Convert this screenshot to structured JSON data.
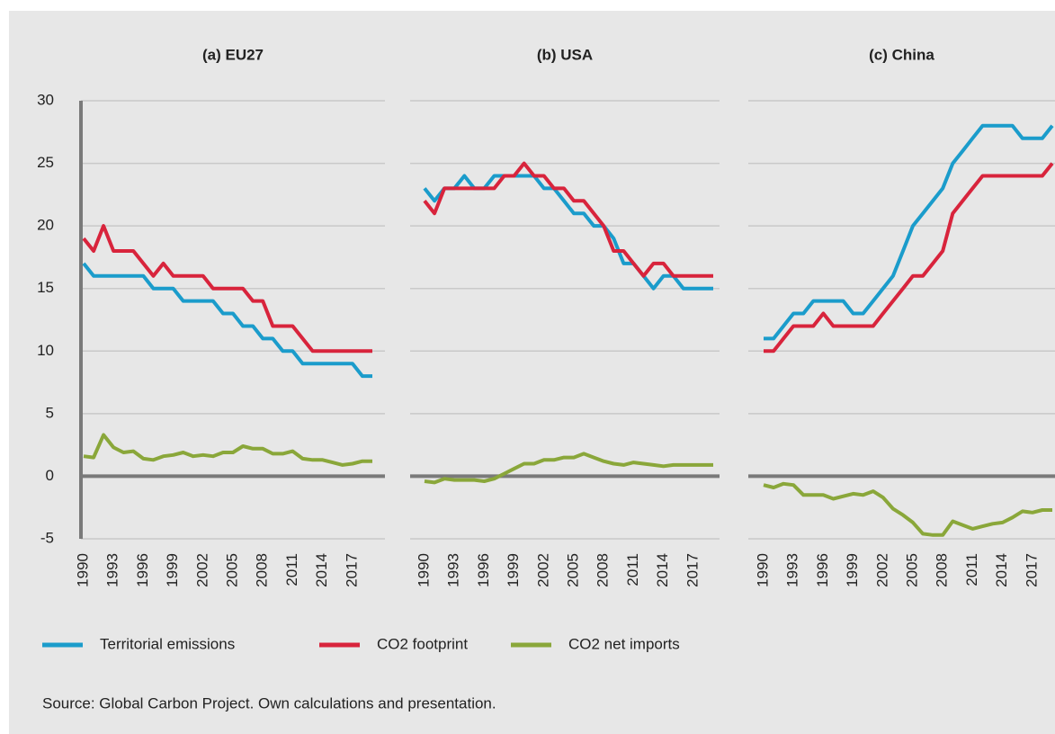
{
  "chart_data": [
    {
      "type": "line",
      "title": "(a) EU27",
      "x": [
        1990,
        1991,
        1992,
        1993,
        1994,
        1995,
        1996,
        1997,
        1998,
        1999,
        2000,
        2001,
        2002,
        2003,
        2004,
        2005,
        2006,
        2007,
        2008,
        2009,
        2010,
        2011,
        2012,
        2013,
        2014,
        2015,
        2016,
        2017,
        2018,
        2019
      ],
      "xlim": [
        1990,
        2019
      ],
      "xticks": [
        1990,
        1993,
        1996,
        1999,
        2002,
        2005,
        2008,
        2011,
        2014,
        2017
      ],
      "ylim": [
        -5,
        30
      ],
      "yticks": [
        -5,
        0,
        5,
        10,
        15,
        20,
        25,
        30
      ],
      "grid": true,
      "series": [
        {
          "name": "Territorial emissions",
          "color": "#1b9ccb",
          "values": [
            17,
            16,
            16,
            16,
            16,
            16,
            16,
            15,
            15,
            15,
            14,
            14,
            14,
            14,
            13,
            13,
            12,
            12,
            11,
            11,
            10,
            10,
            9,
            9,
            9,
            9,
            9,
            9,
            8,
            8
          ]
        },
        {
          "name": "CO2 footprint",
          "color": "#d8243c",
          "values": [
            19,
            18,
            20,
            18,
            18,
            18,
            17,
            16,
            17,
            16,
            16,
            16,
            16,
            15,
            15,
            15,
            15,
            14,
            14,
            12,
            12,
            12,
            11,
            10,
            10,
            10,
            10,
            10,
            10,
            10
          ]
        },
        {
          "name": "CO2 net imports",
          "color": "#8aa73a",
          "values": [
            1.6,
            1.5,
            3.3,
            2.3,
            1.9,
            2.0,
            1.4,
            1.3,
            1.6,
            1.7,
            1.9,
            1.6,
            1.7,
            1.6,
            1.9,
            1.9,
            2.4,
            2.2,
            2.2,
            1.8,
            1.8,
            2.0,
            1.4,
            1.3,
            1.3,
            1.1,
            0.9,
            1.0,
            1.2,
            1.2
          ]
        }
      ]
    },
    {
      "type": "line",
      "title": "(b) USA",
      "x": [
        1990,
        1991,
        1992,
        1993,
        1994,
        1995,
        1996,
        1997,
        1998,
        1999,
        2000,
        2001,
        2002,
        2003,
        2004,
        2005,
        2006,
        2007,
        2008,
        2009,
        2010,
        2011,
        2012,
        2013,
        2014,
        2015,
        2016,
        2017,
        2018,
        2019
      ],
      "xlim": [
        1990,
        2019
      ],
      "xticks": [
        1990,
        1993,
        1996,
        1999,
        2002,
        2005,
        2008,
        2011,
        2014,
        2017
      ],
      "ylim": [
        -5,
        30
      ],
      "yticks": [
        -5,
        0,
        5,
        10,
        15,
        20,
        25,
        30
      ],
      "grid": true,
      "series": [
        {
          "name": "Territorial emissions",
          "color": "#1b9ccb",
          "values": [
            23,
            22,
            23,
            23,
            24,
            23,
            23,
            24,
            24,
            24,
            24,
            24,
            23,
            23,
            22,
            21,
            21,
            20,
            20,
            19,
            17,
            17,
            16,
            15,
            16,
            16,
            15,
            15,
            15,
            15
          ]
        },
        {
          "name": "CO2 footprint",
          "color": "#d8243c",
          "values": [
            22,
            21,
            23,
            23,
            23,
            23,
            23,
            23,
            24,
            24,
            25,
            24,
            24,
            23,
            23,
            22,
            22,
            21,
            20,
            18,
            18,
            17,
            16,
            17,
            17,
            16,
            16,
            16,
            16,
            16
          ]
        },
        {
          "name": "CO2 net imports",
          "color": "#8aa73a",
          "values": [
            -0.4,
            -0.5,
            -0.2,
            -0.3,
            -0.3,
            -0.3,
            -0.4,
            -0.2,
            0.2,
            0.6,
            1.0,
            1.0,
            1.3,
            1.3,
            1.5,
            1.5,
            1.8,
            1.5,
            1.2,
            1.0,
            0.9,
            1.1,
            1.0,
            0.9,
            0.8,
            0.9,
            0.9,
            0.9,
            0.9,
            0.9
          ]
        }
      ]
    },
    {
      "type": "line",
      "title": "(c) China",
      "x": [
        1990,
        1991,
        1992,
        1993,
        1994,
        1995,
        1996,
        1997,
        1998,
        1999,
        2000,
        2001,
        2002,
        2003,
        2004,
        2005,
        2006,
        2007,
        2008,
        2009,
        2010,
        2011,
        2012,
        2013,
        2014,
        2015,
        2016,
        2017,
        2018,
        2019
      ],
      "xlim": [
        1990,
        2019
      ],
      "xticks": [
        1990,
        1993,
        1996,
        1999,
        2002,
        2005,
        2008,
        2011,
        2014,
        2017
      ],
      "ylim": [
        -5,
        30
      ],
      "yticks": [
        -5,
        0,
        5,
        10,
        15,
        20,
        25,
        30
      ],
      "grid": true,
      "series": [
        {
          "name": "Territorial emissions",
          "color": "#1b9ccb",
          "values": [
            11,
            11,
            12,
            13,
            13,
            14,
            14,
            14,
            14,
            13,
            13,
            14,
            15,
            16,
            18,
            20,
            21,
            22,
            23,
            25,
            26,
            27,
            28,
            28,
            28,
            28,
            27,
            27,
            27,
            28
          ]
        },
        {
          "name": "CO2 footprint",
          "color": "#d8243c",
          "values": [
            10,
            10,
            11,
            12,
            12,
            12,
            13,
            12,
            12,
            12,
            12,
            12,
            13,
            14,
            15,
            16,
            16,
            17,
            18,
            21,
            22,
            23,
            24,
            24,
            24,
            24,
            24,
            24,
            24,
            25
          ]
        },
        {
          "name": "CO2 net imports",
          "color": "#8aa73a",
          "values": [
            -0.7,
            -0.9,
            -0.6,
            -0.7,
            -1.5,
            -1.5,
            -1.5,
            -1.8,
            -1.6,
            -1.4,
            -1.5,
            -1.2,
            -1.7,
            -2.6,
            -3.1,
            -3.7,
            -4.6,
            -4.7,
            -4.7,
            -3.6,
            -3.9,
            -4.2,
            -4.0,
            -3.8,
            -3.7,
            -3.3,
            -2.8,
            -2.9,
            -2.7,
            -2.7
          ]
        }
      ]
    }
  ],
  "source": "Source: Global Carbon Project. Own calculations and presentation."
}
